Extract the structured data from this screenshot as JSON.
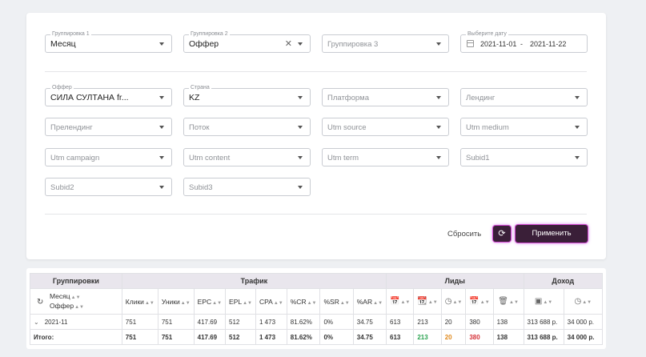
{
  "filters": {
    "grouping1": {
      "label": "Группировка 1",
      "value": "Месяц"
    },
    "grouping2": {
      "label": "Группировка 2",
      "value": "Оффер"
    },
    "grouping3": {
      "placeholder": "Группировка 3"
    },
    "date": {
      "label": "Выберите дату",
      "from": "2021-11-01",
      "to": "2021-11-22",
      "separator": "-"
    },
    "offer": {
      "label": "Оффер",
      "value": "СИЛА СУЛТАНА fr..."
    },
    "country": {
      "label": "Страна",
      "value": "KZ"
    },
    "platform": {
      "placeholder": "Платформа"
    },
    "landing": {
      "placeholder": "Лендинг"
    },
    "prelanding": {
      "placeholder": "Прелендинг"
    },
    "stream": {
      "placeholder": "Поток"
    },
    "utm_source": {
      "placeholder": "Utm source"
    },
    "utm_medium": {
      "placeholder": "Utm medium"
    },
    "utm_campaign": {
      "placeholder": "Utm campaign"
    },
    "utm_content": {
      "placeholder": "Utm content"
    },
    "utm_term": {
      "placeholder": "Utm term"
    },
    "subid1": {
      "placeholder": "Subid1"
    },
    "subid2": {
      "placeholder": "Subid2"
    },
    "subid3": {
      "placeholder": "Subid3"
    }
  },
  "actions": {
    "reset": "Сбросить",
    "apply": "Применить",
    "refresh_icon": "refresh-icon"
  },
  "table": {
    "groups": {
      "grouping": "Группировки",
      "traffic": "Трафик",
      "leads": "Лиды",
      "income": "Доход"
    },
    "group_cols": {
      "month": "Месяц",
      "offer": "Оффер"
    },
    "traffic_cols": [
      "Клики",
      "Уники",
      "EPC",
      "EPL",
      "CPA",
      "%CR",
      "%SR",
      "%AR"
    ],
    "lead_icons": [
      "calendar-all-icon",
      "calendar-check-icon",
      "clock-icon",
      "calendar-x-icon",
      "trash-icon"
    ],
    "income_icons": [
      "wallet-icon",
      "clock-icon"
    ],
    "row": {
      "label": "2021-11",
      "traffic": [
        "751",
        "751",
        "417.69",
        "512",
        "1 473",
        "81.62%",
        "0%",
        "34.75"
      ],
      "leads": [
        "613",
        "213",
        "20",
        "380",
        "138"
      ],
      "income": [
        "313 688 р.",
        "34 000 р."
      ]
    },
    "total": {
      "label": "Итого:",
      "traffic": [
        "751",
        "751",
        "417.69",
        "512",
        "1 473",
        "81.62%",
        "0%",
        "34.75"
      ],
      "leads": [
        "613",
        "213",
        "20",
        "380",
        "138"
      ],
      "income": [
        "313 688 р.",
        "34 000 р."
      ]
    },
    "colors": {
      "approved": "#2aa350",
      "hold": "#e08a1e",
      "rejected": "#d6333a"
    }
  }
}
